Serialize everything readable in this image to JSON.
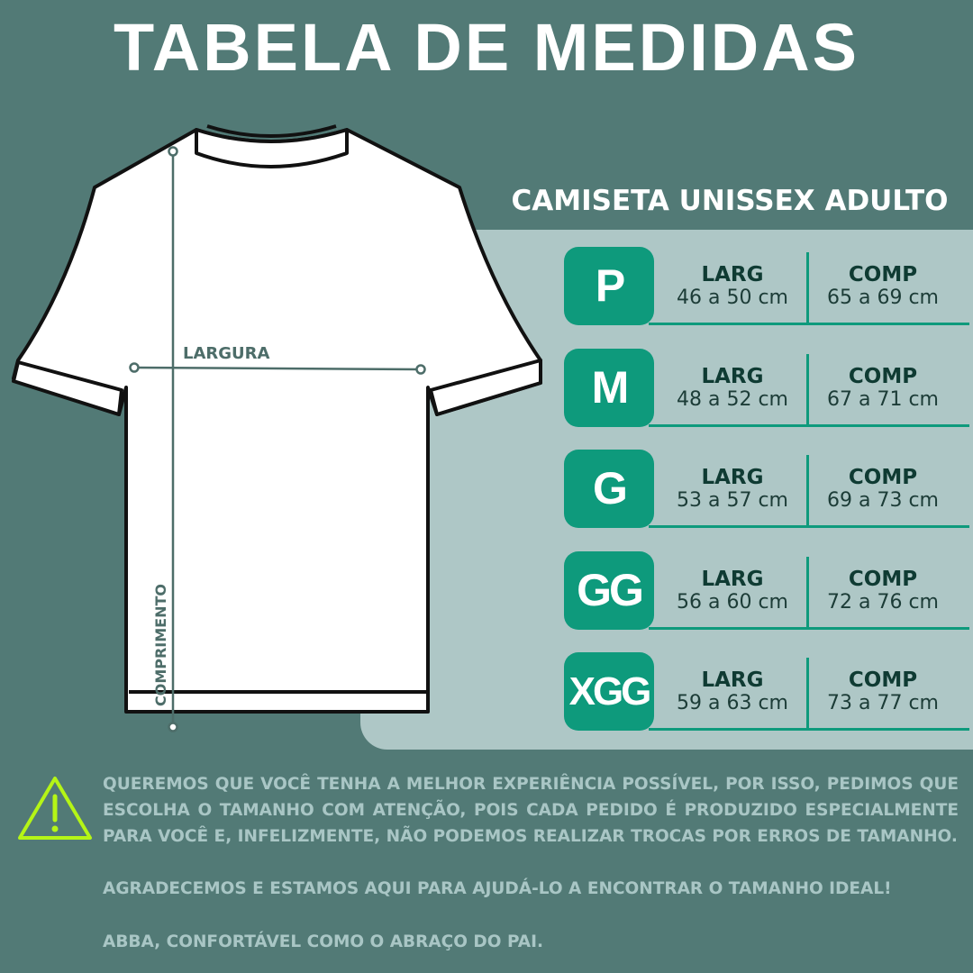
{
  "title": "TABELA DE MEDIDAS",
  "subtitle": "CAMISETA UNISSEX ADULTO",
  "diagram": {
    "width_label": "LARGURA",
    "length_label": "COMPRIMENTO"
  },
  "sizes": [
    {
      "size": "P",
      "larg_label": "LARG",
      "larg": "46 a 50 cm",
      "comp_label": "COMP",
      "comp": "65 a 69 cm"
    },
    {
      "size": "M",
      "larg_label": "LARG",
      "larg": "48 a 52 cm",
      "comp_label": "COMP",
      "comp": "67 a 71 cm"
    },
    {
      "size": "G",
      "larg_label": "LARG",
      "larg": "53 a 57 cm",
      "comp_label": "COMP",
      "comp": "69 a 73 cm"
    },
    {
      "size": "GG",
      "larg_label": "LARG",
      "larg": "56 a 60 cm",
      "comp_label": "COMP",
      "comp": "72 a 76 cm"
    },
    {
      "size": "XGG",
      "larg_label": "LARG",
      "larg": "59 a 63 cm",
      "comp_label": "COMP",
      "comp": "73 a 77 cm"
    }
  ],
  "notice": {
    "lines": [
      "QUEREMOS QUE VOCÊ TENHA A MELHOR EXPERIÊNCIA POSSÍVEL, POR ISSO, PEDIMOS QUE",
      "ESCOLHA O TAMANHO COM ATENÇÃO, POIS CADA PEDIDO É PRODUZIDO ESPECIALMENTE",
      "PARA VOCÊ E, INFELIZMENTE, NÃO PODEMOS REALIZAR TROCAS POR ERROS DE TAMANHO."
    ],
    "thanks": "AGRADECEMOS E ESTAMOS AQUI PARA AJUDÁ-LO A ENCONTRAR O TAMANHO IDEAL!",
    "slogan": "ABBA, CONFORTÁVEL COMO O ABRAÇO DO PAI."
  },
  "colors": {
    "background": "#527a76",
    "panel": "#aec7c6",
    "accent": "#0e9a7c",
    "warning": "#b5f516"
  }
}
